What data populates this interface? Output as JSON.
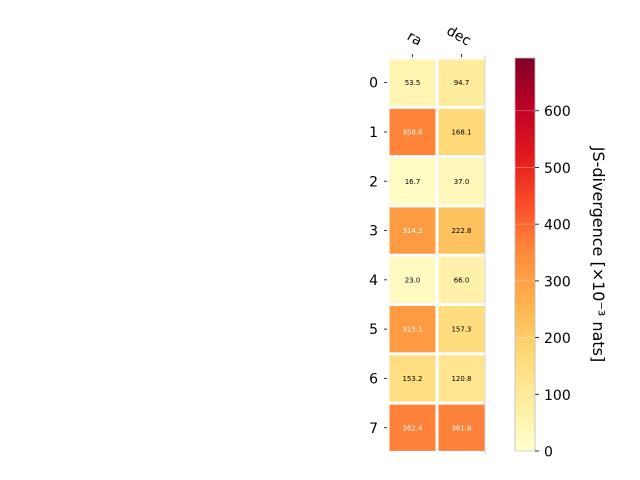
{
  "chart_data": {
    "type": "heatmap",
    "columns": [
      "ra",
      "dec"
    ],
    "rows": [
      "0",
      "1",
      "2",
      "3",
      "4",
      "5",
      "6",
      "7"
    ],
    "values": [
      [
        53.5,
        94.7
      ],
      [
        358.6,
        168.1
      ],
      [
        16.7,
        37.0
      ],
      [
        314.3,
        222.8
      ],
      [
        23.0,
        66.0
      ],
      [
        315.1,
        157.3
      ],
      [
        153.2,
        120.8
      ],
      [
        362.4,
        361.8
      ]
    ],
    "value_labels": [
      [
        "53.5",
        "94.7"
      ],
      [
        "358.6",
        "168.1"
      ],
      [
        "16.7",
        "37.0"
      ],
      [
        "314.3",
        "222.8"
      ],
      [
        "23.0",
        "66.0"
      ],
      [
        "315.1",
        "157.3"
      ],
      [
        "153.2",
        "120.8"
      ],
      [
        "362.4",
        "361.8"
      ]
    ],
    "colorbar": {
      "label": "JS-divergence [×10⁻³ nats]",
      "range": [
        0,
        693
      ],
      "ticks": [
        0,
        100,
        200,
        300,
        400,
        500,
        600
      ],
      "colormap": "YlOrRd",
      "color_stops": [
        "#ffffcc",
        "#ffeda0",
        "#fed976",
        "#feb24c",
        "#fd8d3c",
        "#fc4e2a",
        "#e31a1c",
        "#bd0026",
        "#800026"
      ]
    }
  }
}
